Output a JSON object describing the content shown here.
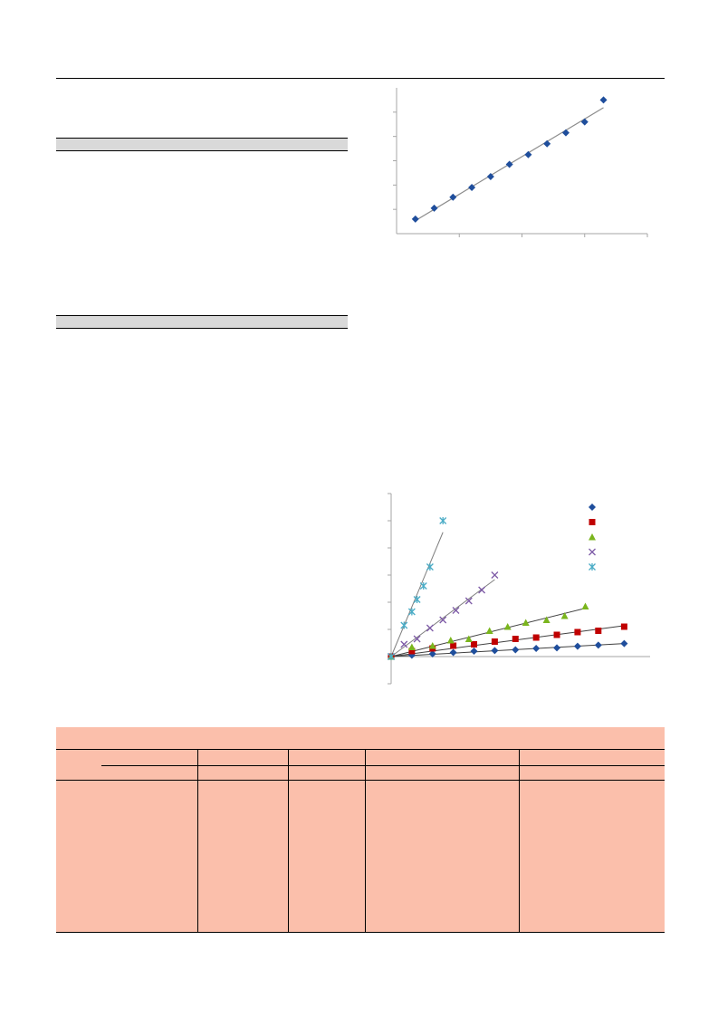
{
  "page": {
    "background": "#ffffff"
  },
  "colors": {
    "table_header_bar": "#d9d9d9",
    "bottom_table_fill": "#fbbfab",
    "fit_line": "#8c8c8c",
    "axis": "#a6a6a6"
  },
  "chart_data": [
    {
      "type": "scatter",
      "title": "",
      "xlabel": "",
      "ylabel": "",
      "xlim": [
        0,
        8
      ],
      "ylim": [
        0,
        6
      ],
      "grid": false,
      "trendline": true,
      "series": [
        {
          "color": "#1f4e9c",
          "marker": "diamond",
          "x": [
            0.6,
            1.2,
            1.8,
            2.4,
            3.0,
            3.6,
            4.2,
            4.8,
            5.4,
            6.0,
            6.6
          ],
          "y": [
            0.6,
            1.05,
            1.5,
            1.9,
            2.35,
            2.85,
            3.25,
            3.7,
            4.15,
            4.6,
            5.5
          ]
        }
      ]
    },
    {
      "type": "scatter",
      "title": "",
      "xlabel": "",
      "ylabel": "",
      "xlim": [
        0,
        10
      ],
      "ylim": [
        -1,
        6
      ],
      "grid": false,
      "trendline": true,
      "legend_position": "top-right",
      "series": [
        {
          "color": "#1f4e9c",
          "marker": "diamond",
          "x": [
            0,
            0.8,
            1.6,
            2.4,
            3.2,
            4.0,
            4.8,
            5.6,
            6.4,
            7.2,
            8.0,
            9.0
          ],
          "y": [
            0,
            0.05,
            0.1,
            0.15,
            0.2,
            0.22,
            0.25,
            0.3,
            0.32,
            0.38,
            0.42,
            0.48
          ]
        },
        {
          "color": "#c00000",
          "marker": "square",
          "x": [
            0,
            0.8,
            1.6,
            2.4,
            3.2,
            4.0,
            4.8,
            5.6,
            6.4,
            7.2,
            8.0,
            9.0
          ],
          "y": [
            0,
            0.2,
            0.3,
            0.4,
            0.45,
            0.55,
            0.65,
            0.7,
            0.8,
            0.9,
            0.95,
            1.1
          ]
        },
        {
          "color": "#7ab51d",
          "marker": "triangle",
          "x": [
            0,
            0.8,
            1.6,
            2.3,
            3.0,
            3.8,
            4.5,
            5.2,
            6.0,
            6.7,
            7.5
          ],
          "y": [
            0,
            0.35,
            0.4,
            0.6,
            0.65,
            0.95,
            1.1,
            1.25,
            1.35,
            1.5,
            1.85
          ]
        },
        {
          "color": "#7d5aa6",
          "marker": "x",
          "x": [
            0,
            0.5,
            1.0,
            1.5,
            2.0,
            2.5,
            3.0,
            3.5,
            4.0
          ],
          "y": [
            0,
            0.45,
            0.65,
            1.05,
            1.35,
            1.7,
            2.05,
            2.45,
            3.0
          ]
        },
        {
          "color": "#4aacc6",
          "marker": "asterisk",
          "x": [
            0,
            0.5,
            0.8,
            1.0,
            1.25,
            1.5,
            2.0
          ],
          "y": [
            0,
            1.15,
            1.65,
            2.1,
            2.6,
            3.3,
            5.0
          ]
        }
      ]
    }
  ]
}
